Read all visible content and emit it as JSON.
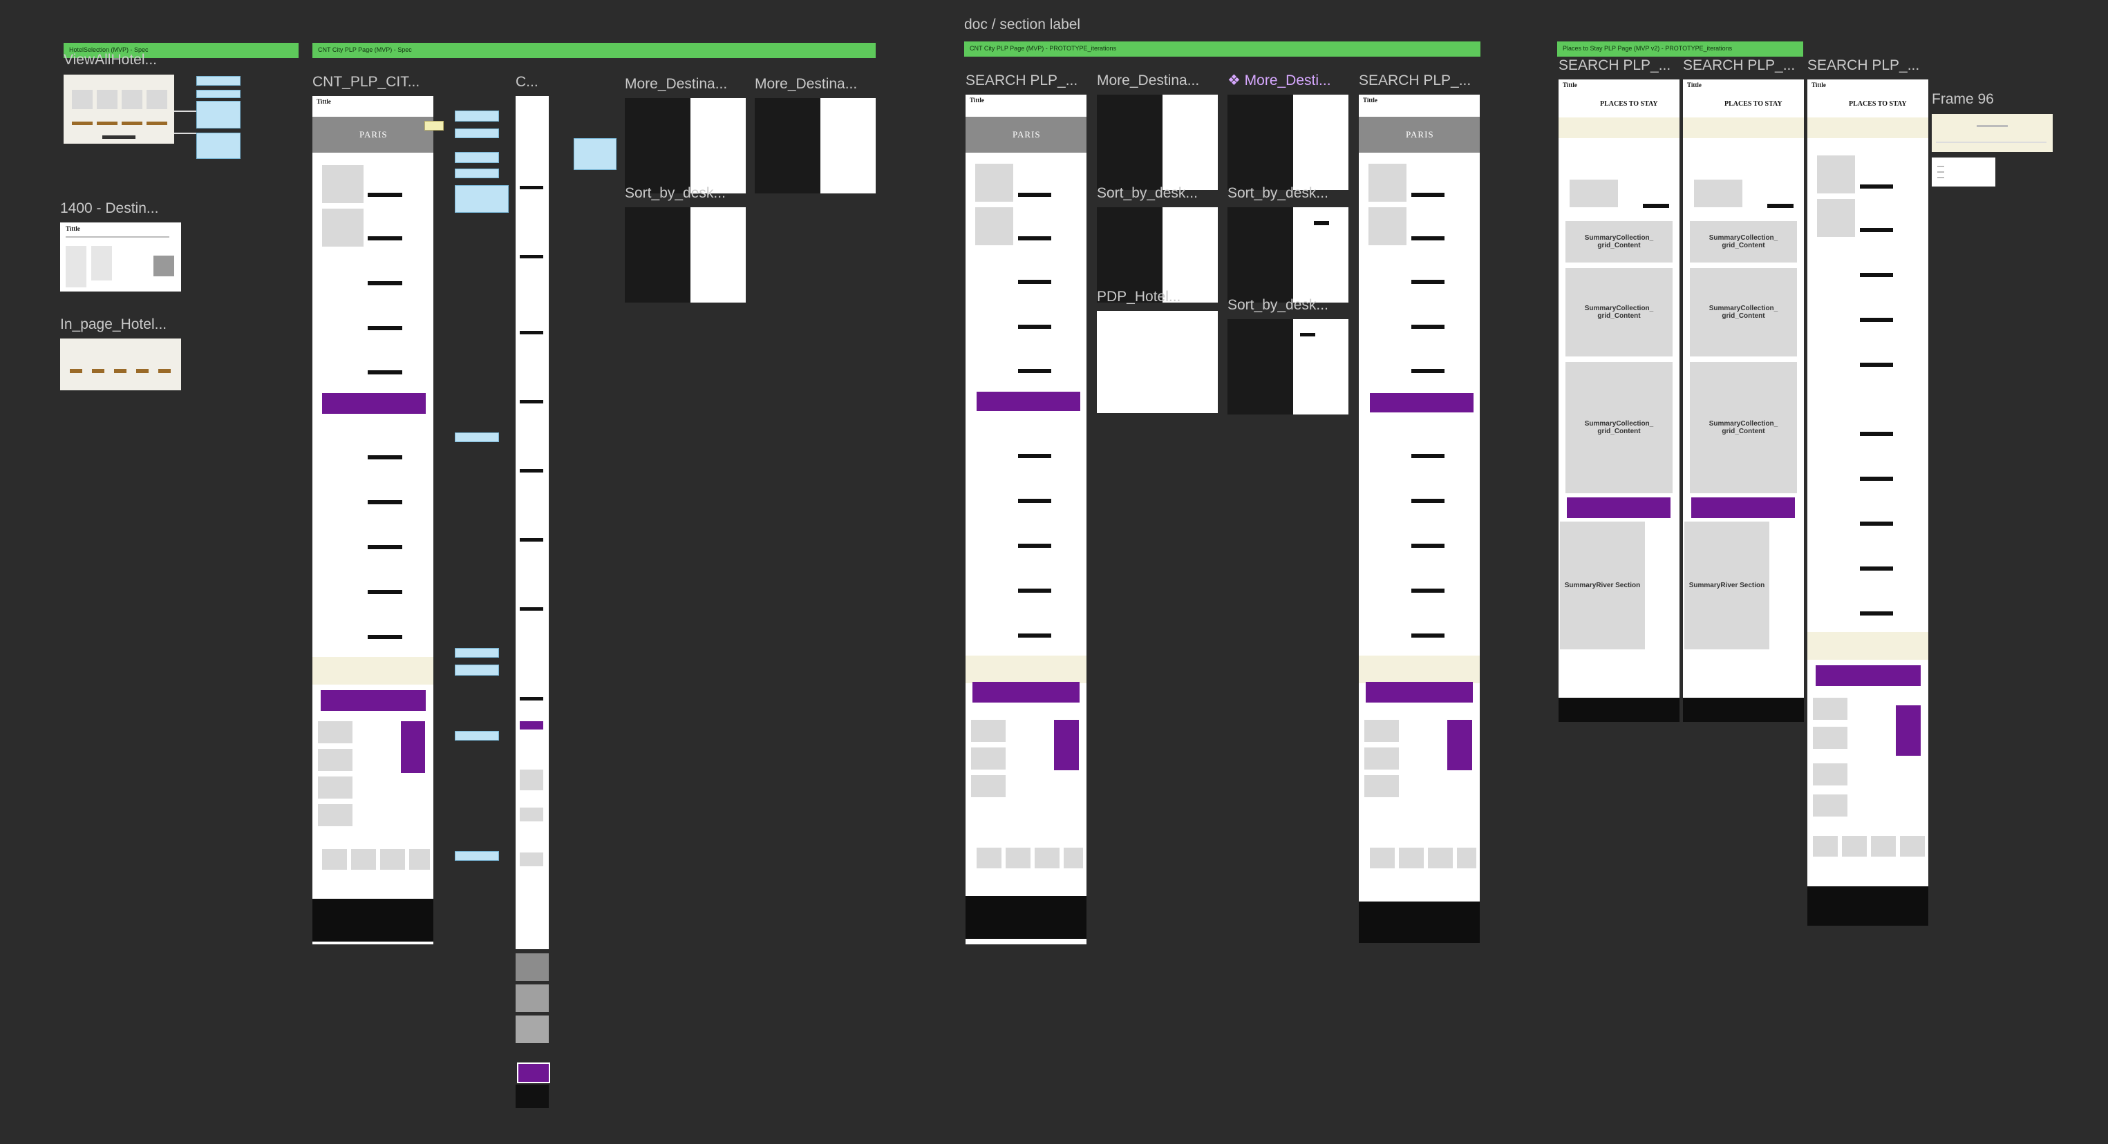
{
  "canvas": {
    "section_label": "doc / section label",
    "section_bars": [
      "HotelSelection (MVP) - Spec",
      "CNT City PLP Page (MVP) - Spec",
      "CNT City PLP Page (MVP) - PROTOTYPE_iterations",
      "Places to Stay PLP Page (MVP v2) - PROTOTYPE_iterations"
    ],
    "frame_labels": {
      "view_all_hotel": "ViewAllHotel...",
      "destin_1400": "1400 - Destin...",
      "in_page_hotel": "In_page_Hotel...",
      "cnt_plp_cit": "CNT_PLP_CIT...",
      "c_short": "C...",
      "more_destina_1": "More_Destina...",
      "more_destina_2": "More_Destina...",
      "sort_by_desk_1": "Sort_by_desk...",
      "search_plp_1": "SEARCH PLP_...",
      "more_destina_3": "More_Destina...",
      "more_desti_component": "❖ More_Desti...",
      "search_plp_2": "SEARCH PLP_...",
      "sort_by_desk_2": "Sort_by_desk...",
      "sort_by_desk_3": "Sort_by_desk...",
      "sort_by_desk_4": "Sort_by_desk...",
      "pdp_hotel": "PDP_Hotel...",
      "search_plp_3": "SEARCH PLP_...",
      "search_plp_4": "SEARCH PLP_...",
      "search_plp_5": "SEARCH PLP_...",
      "frame_96": "Frame 96"
    },
    "hero_city": "PARIS",
    "places_title": "PLACES TO STAY",
    "summary_collection": "SummaryCollection_ grid_Content",
    "summary_river": "SummaryRiver Section",
    "colors": {
      "canvas": "#2c2c2c",
      "section_bar": "#5ec95b",
      "purple_cta": "#6f1793",
      "note": "#bfe3f5",
      "component_label": "#d7a8ff"
    }
  }
}
